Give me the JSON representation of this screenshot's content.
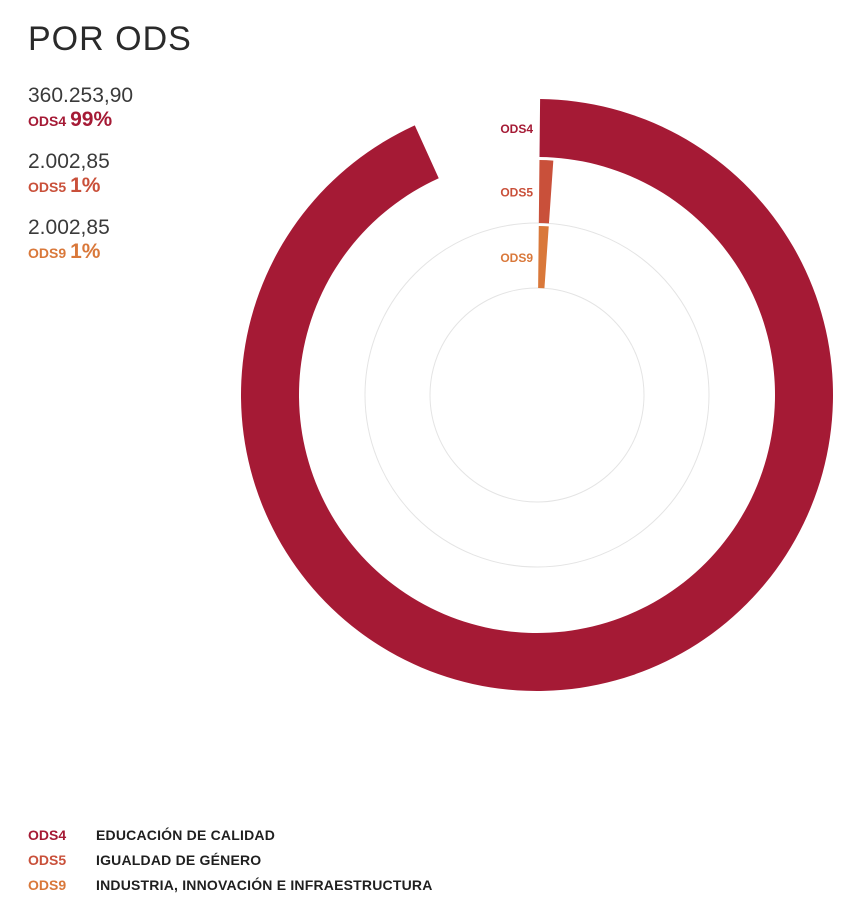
{
  "title": "POR ODS",
  "chart_data": {
    "type": "radial-bar",
    "series": [
      {
        "code": "ODS4",
        "value": "360.253,90",
        "percent": "99%",
        "share": 0.99,
        "color": "#a51a35"
      },
      {
        "code": "ODS5",
        "value": "2.002,85",
        "percent": "1%",
        "share": 0.01,
        "color": "#c9503a"
      },
      {
        "code": "ODS9",
        "value": "2.002,85",
        "percent": "1%",
        "share": 0.01,
        "color": "#d9783a"
      }
    ]
  },
  "legend": [
    {
      "code": "ODS4",
      "name": "EDUCACIÓN DE CALIDAD"
    },
    {
      "code": "ODS5",
      "name": "IGUALDAD DE GÉNERO"
    },
    {
      "code": "ODS9",
      "name": "INDUSTRIA, INNOVACIÓN E INFRAESTRUCTURA"
    }
  ]
}
